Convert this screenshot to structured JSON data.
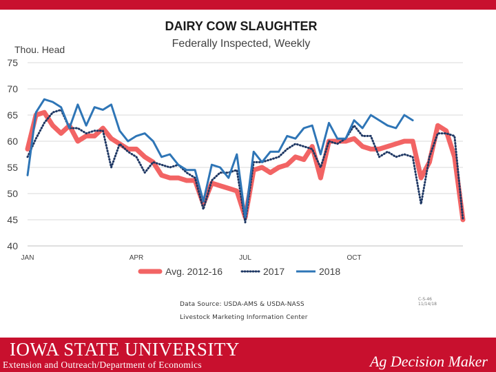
{
  "colors": {
    "brand_red": "#c8102e",
    "avg": "#f26464",
    "y2017": "#1f3864",
    "y2018": "#2e75b6",
    "grid": "#d9d9d9"
  },
  "chart_data": {
    "type": "line",
    "title": "DAIRY COW SLAUGHTER",
    "subtitle": "Federally Inspected, Weekly",
    "ylabel": "Thou. Head",
    "xlabel": "",
    "ylim": [
      40,
      75
    ],
    "yticks": [
      "75",
      "70",
      "65",
      "60",
      "55",
      "50",
      "45",
      "40"
    ],
    "xlim": [
      1,
      53
    ],
    "xticks": [
      {
        "label": "JAN",
        "week": 1
      },
      {
        "label": "APR",
        "week": 14
      },
      {
        "label": "JUL",
        "week": 27
      },
      {
        "label": "OCT",
        "week": 40
      }
    ],
    "grid": true,
    "legend_position": "bottom",
    "series": [
      {
        "name": "Avg. 2012-16",
        "style": "thick",
        "values": [
          58.5,
          65.0,
          65.5,
          63.0,
          61.5,
          63.0,
          60.0,
          61.0,
          61.0,
          62.5,
          60.5,
          59.5,
          58.5,
          58.5,
          57.0,
          56.0,
          53.5,
          53.0,
          53.0,
          52.5,
          52.5,
          48.0,
          52.0,
          51.5,
          51.0,
          50.5,
          45.5,
          54.5,
          55.0,
          54.0,
          55.0,
          55.5,
          57.0,
          56.5,
          59.0,
          53.0,
          60.0,
          60.0,
          60.0,
          60.5,
          59.0,
          58.5,
          58.5,
          59.0,
          59.5,
          60.0,
          60.0,
          53.0,
          56.0,
          63.0,
          62.0,
          57.0,
          45.0
        ]
      },
      {
        "name": "2017",
        "style": "dotted",
        "values": [
          57.0,
          60.5,
          63.5,
          65.5,
          66.0,
          62.5,
          62.5,
          61.5,
          62.0,
          62.0,
          55.0,
          59.5,
          58.0,
          57.0,
          54.0,
          56.0,
          55.5,
          55.0,
          55.5,
          54.0,
          53.0,
          47.0,
          52.5,
          54.0,
          54.0,
          54.5,
          44.5,
          56.0,
          56.0,
          56.5,
          57.0,
          58.5,
          59.5,
          59.0,
          58.5,
          55.0,
          60.0,
          59.5,
          60.5,
          63.0,
          61.0,
          61.0,
          57.0,
          58.0,
          57.0,
          57.5,
          57.0,
          48.0,
          57.0,
          61.5,
          61.5,
          61.0,
          45.0
        ]
      },
      {
        "name": "2018",
        "style": "solid",
        "values": [
          53.5,
          65.5,
          68.0,
          67.5,
          66.5,
          62.5,
          67.0,
          63.0,
          66.5,
          66.0,
          67.0,
          62.0,
          60.0,
          61.0,
          61.5,
          60.0,
          57.0,
          57.5,
          55.5,
          54.5,
          54.5,
          48.5,
          55.5,
          55.0,
          53.0,
          57.5,
          45.5,
          58.0,
          56.0,
          58.0,
          58.0,
          61.0,
          60.5,
          62.5,
          63.0,
          57.5,
          63.5,
          60.5,
          60.5,
          64.0,
          62.5,
          65.0,
          64.0,
          63.0,
          62.5,
          65.0,
          64.0
        ]
      }
    ]
  },
  "source": {
    "line1": "Data Source:  USDA-AMS & USDA-NASS",
    "line2": "Livestock Marketing Information Center",
    "stamp1": "C-S-46",
    "stamp2": "11/14/18"
  },
  "footer": {
    "university": "IOWA STATE UNIVERSITY",
    "subtitle": "Extension and Outreach/Department of Economics",
    "brand": "Ag Decision Maker"
  }
}
